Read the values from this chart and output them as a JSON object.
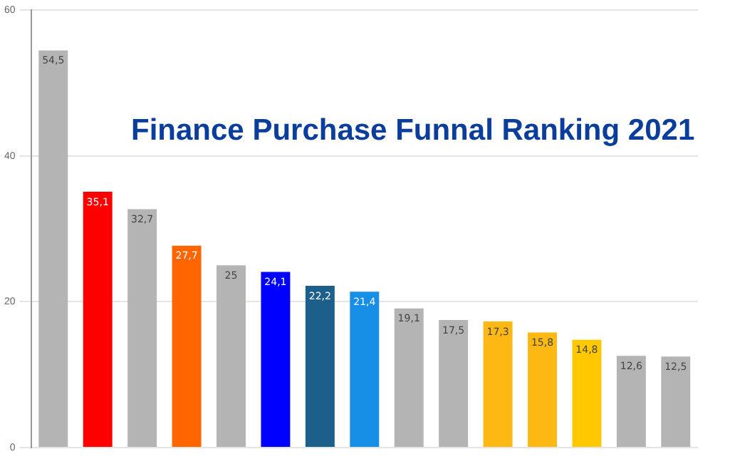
{
  "chart_data": {
    "type": "bar",
    "title": "Finance Purchase Funnal Ranking 2021",
    "categories": [
      null,
      null,
      null,
      null,
      null,
      null,
      null,
      null,
      null,
      null,
      null,
      null,
      null,
      null,
      null
    ],
    "values": [
      54.5,
      35.1,
      32.7,
      27.7,
      25,
      24.1,
      22.2,
      21.4,
      19.1,
      17.5,
      17.3,
      15.8,
      14.8,
      12.6,
      12.5
    ],
    "value_labels": [
      "54,5",
      "35,1",
      "32,7",
      "27,7",
      "25",
      "24,1",
      "22,2",
      "21,4",
      "19,1",
      "17,5",
      "17,3",
      "15,8",
      "14,8",
      "12,6",
      "12,5"
    ],
    "colors": [
      "#b4b4b4",
      "#ff0000",
      "#b4b4b4",
      "#ff6600",
      "#b4b4b4",
      "#0000ff",
      "#1c5f8a",
      "#178fe6",
      "#b4b4b4",
      "#b4b4b4",
      "#fdb813",
      "#fdb813",
      "#ffc800",
      "#b4b4b4",
      "#b4b4b4"
    ],
    "ylim": [
      0,
      60
    ],
    "yticks": [
      0,
      20,
      40,
      60
    ],
    "grid": "y"
  }
}
